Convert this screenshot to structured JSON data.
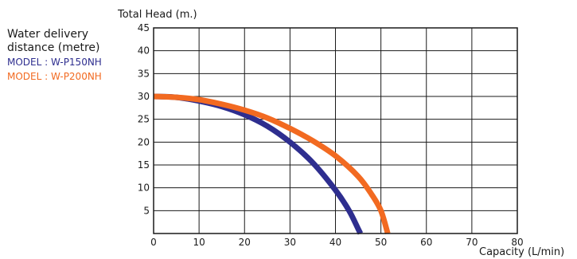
{
  "legend": {
    "heading_line1": "Water delivery",
    "heading_line2": "distance (metre)"
  },
  "chart_data": {
    "type": "line",
    "ylabel": "Total Head (m.)",
    "xlabel": "Capacity (L/min)",
    "xlim": [
      0,
      80
    ],
    "ylim": [
      0,
      45
    ],
    "xticks": [
      0,
      10,
      20,
      30,
      40,
      50,
      60,
      70,
      80
    ],
    "yticks": [
      5,
      10,
      15,
      20,
      25,
      30,
      35,
      40,
      45
    ],
    "grid": true,
    "legend_position": "top-left",
    "series": [
      {
        "name": "MODEL : W-P150NH",
        "color": "#2e2e8f",
        "x": [
          0,
          5,
          10,
          15,
          20,
          25,
          30,
          35,
          40,
          43,
          45,
          45.5
        ],
        "y": [
          30,
          29.8,
          29,
          27.8,
          26,
          23.5,
          20,
          15.5,
          9.5,
          5,
          1,
          0
        ]
      },
      {
        "name": "MODEL : W-P200NH",
        "color": "#f26a21",
        "x": [
          0,
          5,
          10,
          15,
          20,
          25,
          30,
          35,
          40,
          45,
          48,
          50,
          51.5
        ],
        "y": [
          30,
          29.8,
          29.3,
          28.3,
          27,
          25.3,
          23,
          20.3,
          17,
          12.5,
          8.5,
          5,
          0
        ]
      }
    ]
  }
}
